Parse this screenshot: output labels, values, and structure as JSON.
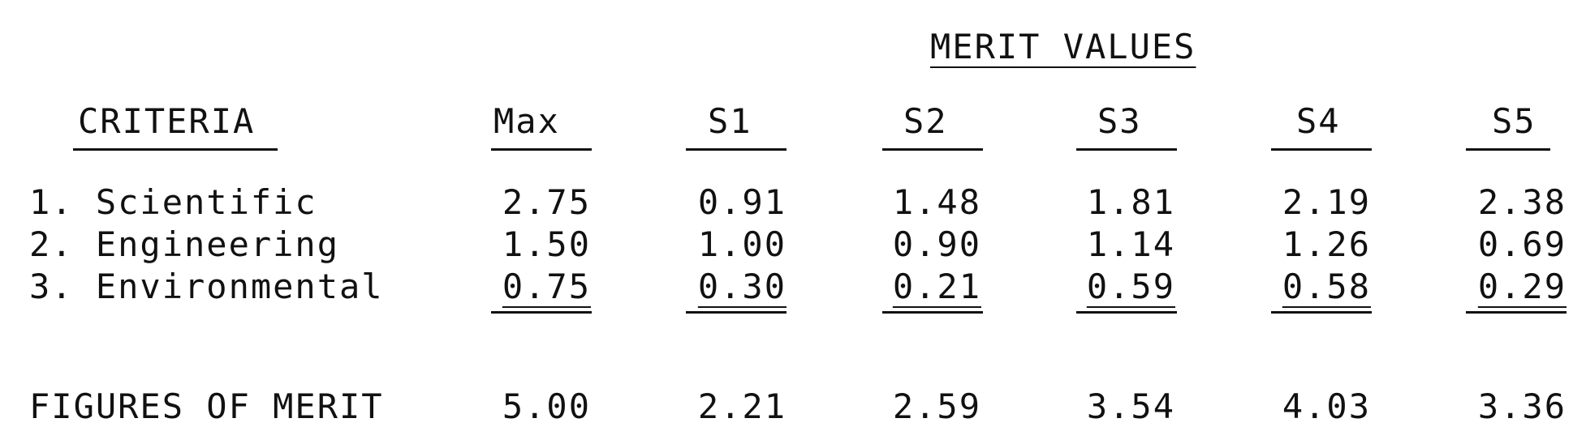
{
  "heading": "MERIT VALUES",
  "columns": {
    "criteria": "CRITERIA",
    "headers": [
      "Max",
      "S1",
      "S2",
      "S3",
      "S4",
      "S5"
    ]
  },
  "rows": [
    {
      "label": "1. Scientific",
      "values": [
        "2.75",
        "0.91",
        "1.48",
        "1.81",
        "2.19",
        "2.38"
      ]
    },
    {
      "label": "2. Engineering",
      "values": [
        "1.50",
        "1.00",
        "0.90",
        "1.14",
        "1.26",
        "0.69"
      ]
    },
    {
      "label": "3. Environmental",
      "values": [
        "0.75",
        "0.30",
        "0.21",
        "0.59",
        "0.58",
        "0.29"
      ]
    }
  ],
  "totals": {
    "label": "FIGURES OF MERIT",
    "values": [
      "5.00",
      "2.21",
      "2.59",
      "3.54",
      "4.03",
      "3.36"
    ]
  }
}
